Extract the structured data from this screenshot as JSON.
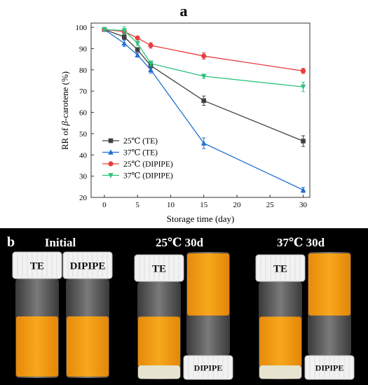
{
  "panel_a_label": "a",
  "panel_b_label": "b",
  "chart_data": {
    "type": "line",
    "xlabel": "Storage time (day)",
    "ylabel_prefix": "RR of ",
    "ylabel_italic": "β",
    "ylabel_suffix": "-carotene (%)",
    "xlim": [
      -2,
      31
    ],
    "ylim": [
      20,
      102
    ],
    "xticks": [
      0,
      5,
      10,
      15,
      20,
      25,
      30
    ],
    "yticks": [
      20,
      30,
      40,
      50,
      60,
      70,
      80,
      90,
      100
    ],
    "grid": false,
    "legend_position": "bottom-left",
    "x": [
      0,
      3,
      5,
      7,
      15,
      30
    ],
    "series": [
      {
        "name": "25℃  (TE)",
        "color": "#404040",
        "marker": "square",
        "values": [
          99,
          95.5,
          89.5,
          82,
          65.5,
          46.5
        ],
        "errors": [
          0.5,
          1.2,
          1,
          1.2,
          2.2,
          2.5
        ]
      },
      {
        "name": "37℃  (TE)",
        "color": "#1f6fd1",
        "marker": "triangle-up",
        "values": [
          99,
          92.5,
          87,
          80,
          45.5,
          23.5
        ],
        "errors": [
          0.5,
          1.5,
          1,
          1.5,
          2.5,
          1.2
        ]
      },
      {
        "name": "25℃  (DIPIPE)",
        "color": "#e83e3e",
        "marker": "circle",
        "values": [
          99,
          98,
          95,
          91.5,
          86.5,
          79.5
        ],
        "errors": [
          0.5,
          1,
          0.8,
          1.3,
          1.5,
          1.2
        ]
      },
      {
        "name": "37℃  (DIPIPE)",
        "color": "#2ec27e",
        "marker": "triangle-down",
        "values": [
          99,
          98.5,
          92.5,
          83,
          77,
          72
        ],
        "errors": [
          0.5,
          1.8,
          1,
          1.2,
          1,
          2.2
        ]
      }
    ]
  },
  "photo": {
    "groups": [
      {
        "title": "Initial",
        "vial1_label": "TE",
        "vial2_label": "DIPIPE"
      },
      {
        "title": "25℃  30d",
        "vial1_label": "TE",
        "vial2_label": "DIPIPE"
      },
      {
        "title": "37℃  30d",
        "vial1_label": "TE",
        "vial2_label": "DIPIPE"
      }
    ],
    "colors": {
      "orange": "#f5a013",
      "cap": "#f2f2f2",
      "background": "#000000"
    }
  }
}
